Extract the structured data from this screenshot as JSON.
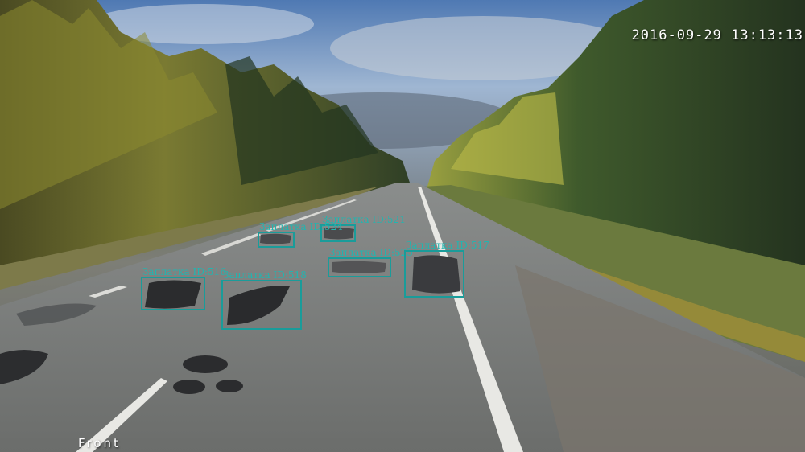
{
  "overlay": {
    "timestamp": "2016-09-29 13:13:13",
    "camera_label": "Front"
  },
  "detections": [
    {
      "id": "521",
      "label": "Заплатка ID:521"
    },
    {
      "id": "524",
      "label": "Заплатка ID:524"
    },
    {
      "id": "525",
      "label": "Заплатка ID:525"
    },
    {
      "id": "517",
      "label": "Заплатка ID:517"
    },
    {
      "id": "516",
      "label": "Заплатка ID:516"
    },
    {
      "id": "518",
      "label": "Заплатка ID:518"
    }
  ],
  "colors": {
    "box_outline": "#1a9c9a",
    "box_label": "#22b5b0",
    "overlay_text": "#ffffff"
  }
}
